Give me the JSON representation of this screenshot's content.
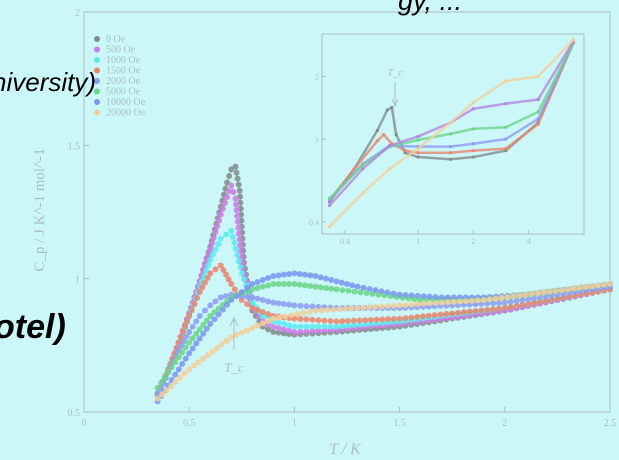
{
  "colors": {
    "background": "#ccf7f9",
    "axis": "#9fb8bb",
    "tick_text": "#a9bec0"
  },
  "overlay_text": {
    "top_right": "gy, ...",
    "university": "niversity)",
    "otel": "otel)"
  },
  "chart_data": [
    {
      "type": "scatter",
      "title": "",
      "xlabel": "T / K",
      "ylabel": "C_p / J K^-1 mol^-1",
      "xlim": [
        0,
        2.5
      ],
      "ylim": [
        0.5,
        2.0
      ],
      "x_ticks": [
        "0",
        "0.5",
        "1",
        "1.5",
        "2",
        "2.5"
      ],
      "y_ticks": [
        "0.5",
        "1",
        "1.5",
        "2"
      ],
      "legend_placement": "top-left",
      "annotation": "T_c",
      "series": [
        {
          "name": "0 Oe",
          "color": "#838c8c",
          "x": [
            0.35,
            0.4,
            0.45,
            0.5,
            0.55,
            0.6,
            0.65,
            0.68,
            0.7,
            0.72,
            0.74,
            0.76,
            0.8,
            0.85,
            0.9,
            1.0,
            1.2,
            1.5,
            2.0,
            2.5
          ],
          "y": [
            0.56,
            0.65,
            0.76,
            0.87,
            0.99,
            1.12,
            1.27,
            1.36,
            1.41,
            1.42,
            1.33,
            1.06,
            0.88,
            0.82,
            0.8,
            0.79,
            0.8,
            0.82,
            0.88,
            0.96
          ]
        },
        {
          "name": "500 Oe",
          "color": "#cf7de6",
          "x": [
            0.35,
            0.4,
            0.45,
            0.5,
            0.55,
            0.6,
            0.65,
            0.7,
            0.72,
            0.75,
            0.8,
            0.85,
            0.9,
            1.0,
            1.2,
            1.5,
            2.0,
            2.5
          ],
          "y": [
            0.56,
            0.65,
            0.76,
            0.87,
            0.99,
            1.11,
            1.24,
            1.35,
            1.3,
            1.06,
            0.9,
            0.84,
            0.82,
            0.8,
            0.81,
            0.83,
            0.88,
            0.96
          ]
        },
        {
          "name": "1000 Oe",
          "color": "#5aebee",
          "x": [
            0.35,
            0.4,
            0.45,
            0.5,
            0.55,
            0.6,
            0.65,
            0.7,
            0.75,
            0.8,
            0.85,
            0.9,
            1.0,
            1.2,
            1.5,
            2.0,
            2.5
          ],
          "y": [
            0.56,
            0.65,
            0.75,
            0.86,
            0.97,
            1.07,
            1.15,
            1.18,
            1.02,
            0.91,
            0.86,
            0.84,
            0.82,
            0.82,
            0.84,
            0.89,
            0.96
          ]
        },
        {
          "name": "1500 Oe",
          "color": "#e8876f",
          "x": [
            0.35,
            0.4,
            0.45,
            0.5,
            0.55,
            0.6,
            0.65,
            0.7,
            0.75,
            0.8,
            0.9,
            1.0,
            1.2,
            1.5,
            2.0,
            2.5
          ],
          "y": [
            0.57,
            0.66,
            0.76,
            0.86,
            0.95,
            1.02,
            1.05,
            0.98,
            0.92,
            0.89,
            0.86,
            0.85,
            0.84,
            0.85,
            0.89,
            0.96
          ]
        },
        {
          "name": "2000 Oe",
          "color": "#8d9ef0",
          "x": [
            0.35,
            0.4,
            0.45,
            0.5,
            0.55,
            0.6,
            0.65,
            0.7,
            0.8,
            0.9,
            1.0,
            1.2,
            1.5,
            2.0,
            2.5
          ],
          "y": [
            0.57,
            0.65,
            0.73,
            0.8,
            0.86,
            0.9,
            0.93,
            0.94,
            0.93,
            0.91,
            0.9,
            0.89,
            0.89,
            0.91,
            0.97
          ]
        },
        {
          "name": "5000 Oe",
          "color": "#6cd58a",
          "x": [
            0.35,
            0.4,
            0.5,
            0.6,
            0.7,
            0.8,
            0.9,
            1.0,
            1.1,
            1.2,
            1.4,
            1.6,
            1.8,
            2.0,
            2.2,
            2.5
          ],
          "y": [
            0.59,
            0.65,
            0.76,
            0.86,
            0.93,
            0.96,
            0.98,
            0.98,
            0.97,
            0.96,
            0.94,
            0.92,
            0.92,
            0.93,
            0.95,
            0.98
          ]
        },
        {
          "name": "10000 Oe",
          "color": "#7999ee",
          "x": [
            0.35,
            0.4,
            0.5,
            0.6,
            0.7,
            0.8,
            0.9,
            1.0,
            1.1,
            1.2,
            1.3,
            1.5,
            1.7,
            1.9,
            2.1,
            2.3,
            2.5
          ],
          "y": [
            0.54,
            0.6,
            0.72,
            0.83,
            0.92,
            0.98,
            1.01,
            1.02,
            1.01,
            0.99,
            0.97,
            0.94,
            0.93,
            0.93,
            0.94,
            0.96,
            0.98
          ]
        },
        {
          "name": "20000 Oe",
          "color": "#f2cf9a",
          "x": [
            0.35,
            0.5,
            0.7,
            0.9,
            1.1,
            1.3,
            1.5,
            1.7,
            1.9,
            2.1,
            2.3,
            2.5
          ],
          "y": [
            0.55,
            0.66,
            0.78,
            0.85,
            0.88,
            0.89,
            0.9,
            0.91,
            0.92,
            0.94,
            0.96,
            0.98
          ]
        }
      ]
    },
    {
      "type": "line",
      "title": "",
      "xlabel": "",
      "ylabel": "",
      "xscale": "log",
      "yscale": "log",
      "xlim": [
        0.3,
        8
      ],
      "ylim": [
        0.35,
        3.2
      ],
      "x_ticks": [
        "0.4",
        "1",
        "2",
        "4"
      ],
      "y_ticks": [
        "0.4",
        "1",
        "2"
      ],
      "annotation": "T_c",
      "series": [
        {
          "name": "0 Oe",
          "color": "#838c8c",
          "x": [
            0.33,
            0.45,
            0.6,
            0.68,
            0.72,
            0.76,
            0.85,
            1.0,
            1.5,
            2.0,
            3.0,
            4.5,
            7.0
          ],
          "y": [
            0.5,
            0.72,
            1.1,
            1.38,
            1.42,
            1.05,
            0.86,
            0.82,
            0.8,
            0.82,
            0.88,
            1.2,
            2.9
          ]
        },
        {
          "name": "1500 Oe",
          "color": "#e8876f",
          "x": [
            0.33,
            0.45,
            0.6,
            0.65,
            0.72,
            0.85,
            1.0,
            1.5,
            2.0,
            3.0,
            4.5,
            7.0
          ],
          "y": [
            0.51,
            0.72,
            0.98,
            1.05,
            0.95,
            0.88,
            0.86,
            0.86,
            0.88,
            0.9,
            1.18,
            2.9
          ]
        },
        {
          "name": "2000 Oe",
          "color": "#8d9ef0",
          "x": [
            0.33,
            0.5,
            0.7,
            1.0,
            1.5,
            2.0,
            3.0,
            4.5,
            7.0
          ],
          "y": [
            0.51,
            0.76,
            0.93,
            0.92,
            0.92,
            0.95,
            1.0,
            1.25,
            2.9
          ]
        },
        {
          "name": "5000 Oe",
          "color": "#6cd58a",
          "x": [
            0.33,
            0.5,
            0.7,
            1.0,
            1.5,
            2.0,
            3.0,
            4.5,
            7.0
          ],
          "y": [
            0.52,
            0.75,
            0.92,
            0.99,
            1.06,
            1.12,
            1.14,
            1.35,
            2.9
          ]
        },
        {
          "name": "10000 Oe",
          "color": "#b486df",
          "x": [
            0.33,
            0.5,
            0.7,
            1.0,
            1.5,
            2.0,
            3.0,
            4.5,
            7.0
          ],
          "y": [
            0.48,
            0.72,
            0.93,
            1.03,
            1.2,
            1.4,
            1.48,
            1.55,
            2.95
          ]
        },
        {
          "name": "20000 Oe",
          "color": "#f2cf9a",
          "x": [
            0.33,
            0.5,
            0.7,
            1.0,
            1.5,
            2.0,
            3.0,
            4.5,
            7.0
          ],
          "y": [
            0.38,
            0.55,
            0.72,
            0.9,
            1.2,
            1.5,
            1.9,
            2.0,
            3.0
          ]
        }
      ]
    }
  ]
}
